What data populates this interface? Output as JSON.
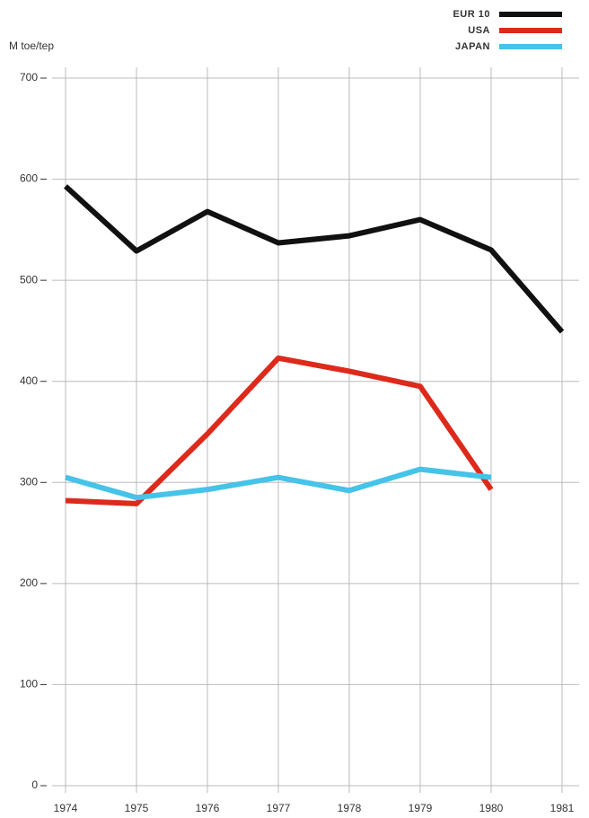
{
  "chart_data": {
    "type": "line",
    "y_label": "M toe/tep",
    "categories": [
      "1974",
      "1975",
      "1976",
      "1977",
      "1978",
      "1979",
      "1980",
      "1981"
    ],
    "series": [
      {
        "name": "EUR 10",
        "color": "#111111",
        "values": [
          593,
          529,
          568,
          537,
          544,
          560,
          530,
          449
        ]
      },
      {
        "name": "USA",
        "color": "#dd2a1b",
        "values": [
          282,
          279,
          348,
          423,
          410,
          395,
          293,
          null
        ]
      },
      {
        "name": "JAPAN",
        "color": "#45c3e8",
        "values": [
          305,
          285,
          293,
          305,
          292,
          313,
          305,
          null
        ]
      }
    ],
    "ylim": [
      0,
      700
    ],
    "yticks": [
      0,
      100,
      200,
      300,
      400,
      500,
      600,
      700
    ],
    "grid": true,
    "legend": "top-right"
  }
}
